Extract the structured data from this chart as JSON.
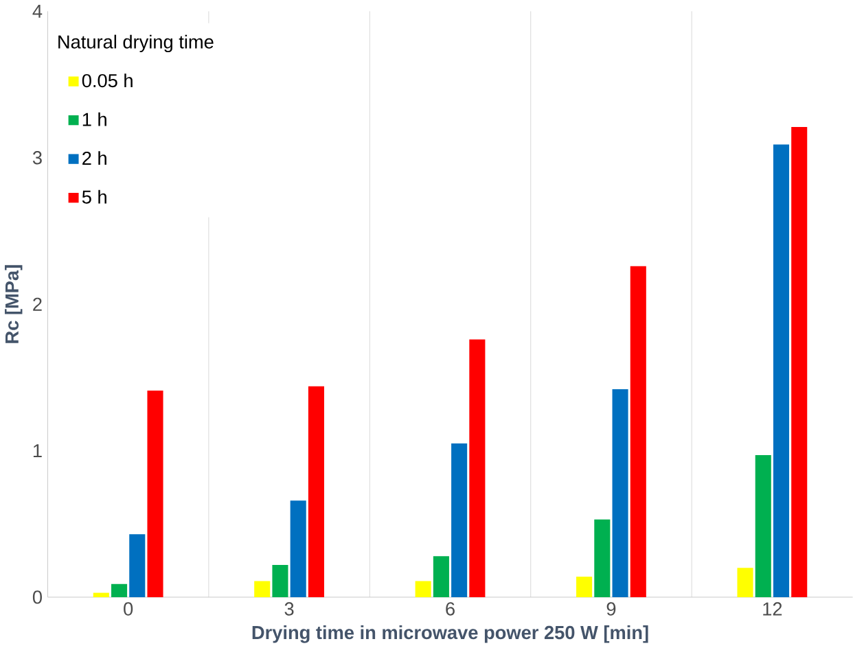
{
  "chart_data": {
    "type": "bar",
    "xlabel": "Drying time in microwave power 250 W [min]",
    "ylabel": "Rc [MPa]",
    "legend_title": "Natural drying time",
    "categories": [
      "0",
      "3",
      "6",
      "9",
      "12"
    ],
    "series": [
      {
        "name": "0.05 h",
        "color": "#ffff00",
        "values": [
          0.03,
          0.11,
          0.11,
          0.14,
          0.2
        ]
      },
      {
        "name": "1 h",
        "color": "#00b050",
        "values": [
          0.09,
          0.22,
          0.28,
          0.53,
          0.97
        ]
      },
      {
        "name": "2 h",
        "color": "#0070c0",
        "values": [
          0.43,
          0.66,
          1.05,
          1.42,
          3.09
        ]
      },
      {
        "name": "5 h",
        "color": "#ff0000",
        "values": [
          1.41,
          1.44,
          1.76,
          2.26,
          3.21
        ]
      }
    ],
    "ylim": [
      0,
      4
    ],
    "yticks": [
      0,
      1,
      2,
      3,
      4
    ],
    "grid": "x",
    "legend": "top left"
  }
}
